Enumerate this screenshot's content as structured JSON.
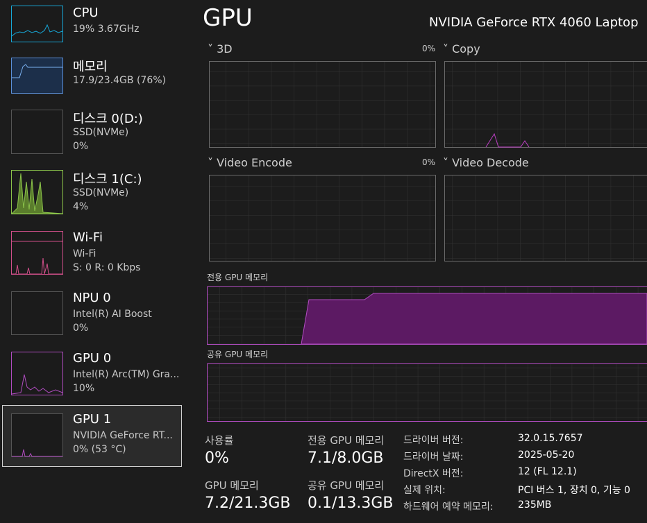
{
  "sidebar": [
    {
      "name": "CPU",
      "lines": [
        "19% 3.67GHz"
      ]
    },
    {
      "name": "메모리",
      "lines": [
        "17.9/23.4GB (76%)"
      ]
    },
    {
      "name": "디스크 0(D:)",
      "lines": [
        "SSD(NVMe)",
        "0%"
      ]
    },
    {
      "name": "디스크 1(C:)",
      "lines": [
        "SSD(NVMe)",
        "4%"
      ]
    },
    {
      "name": "Wi-Fi",
      "lines": [
        "Wi-Fi",
        "S: 0 R: 0 Kbps"
      ]
    },
    {
      "name": "NPU 0",
      "lines": [
        "Intel(R) AI Boost",
        "0%"
      ]
    },
    {
      "name": "GPU 0",
      "lines": [
        "Intel(R) Arc(TM) Gra...",
        "10%"
      ]
    },
    {
      "name": "GPU 1",
      "lines": [
        "NVIDIA GeForce RT...",
        "0% (53 °C)"
      ]
    }
  ],
  "header": {
    "title": "GPU",
    "device": "NVIDIA GeForce RTX 4060 Laptop"
  },
  "graphs": [
    {
      "label": "3D",
      "value": "0%"
    },
    {
      "label": "Copy"
    },
    {
      "label": "Video Encode",
      "value": "0%"
    },
    {
      "label": "Video Decode"
    }
  ],
  "memory_graphs": [
    "전용 GPU 메모리",
    "공유 GPU 메모리"
  ],
  "stats": [
    {
      "label": "사용률",
      "value": "0%"
    },
    {
      "label": "전용 GPU 메모리",
      "value": "7.1/8.0GB"
    },
    {
      "label": "GPU 메모리",
      "value": "7.2/21.3GB"
    },
    {
      "label": "공유 GPU 메모리",
      "value": "0.1/13.3GB"
    }
  ],
  "properties": [
    [
      "드라이버 버전:",
      "32.0.15.7657"
    ],
    [
      "드라이버 날짜:",
      "2025-05-20"
    ],
    [
      "DirectX 버전:",
      "12 (FL 12.1)"
    ],
    [
      "실제 위치:",
      "PCI 버스 1, 장치 0, 기능 0"
    ],
    [
      "하드웨어 예약 메모리:",
      "235MB"
    ]
  ]
}
